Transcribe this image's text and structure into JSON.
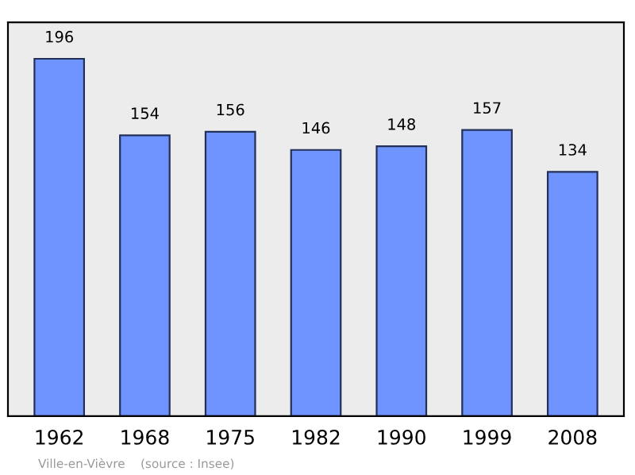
{
  "chart_data": {
    "type": "bar",
    "categories": [
      "1962",
      "1968",
      "1975",
      "1982",
      "1990",
      "1999",
      "2008"
    ],
    "values": [
      196,
      154,
      156,
      146,
      148,
      157,
      134
    ],
    "color": "#7094ff",
    "data_labels": true,
    "ylim": [
      0,
      216
    ],
    "tick_labels": "x",
    "grid": false,
    "legend": false,
    "annotations": [
      "Ville-en-Vièvre    (source : Insee)"
    ]
  }
}
